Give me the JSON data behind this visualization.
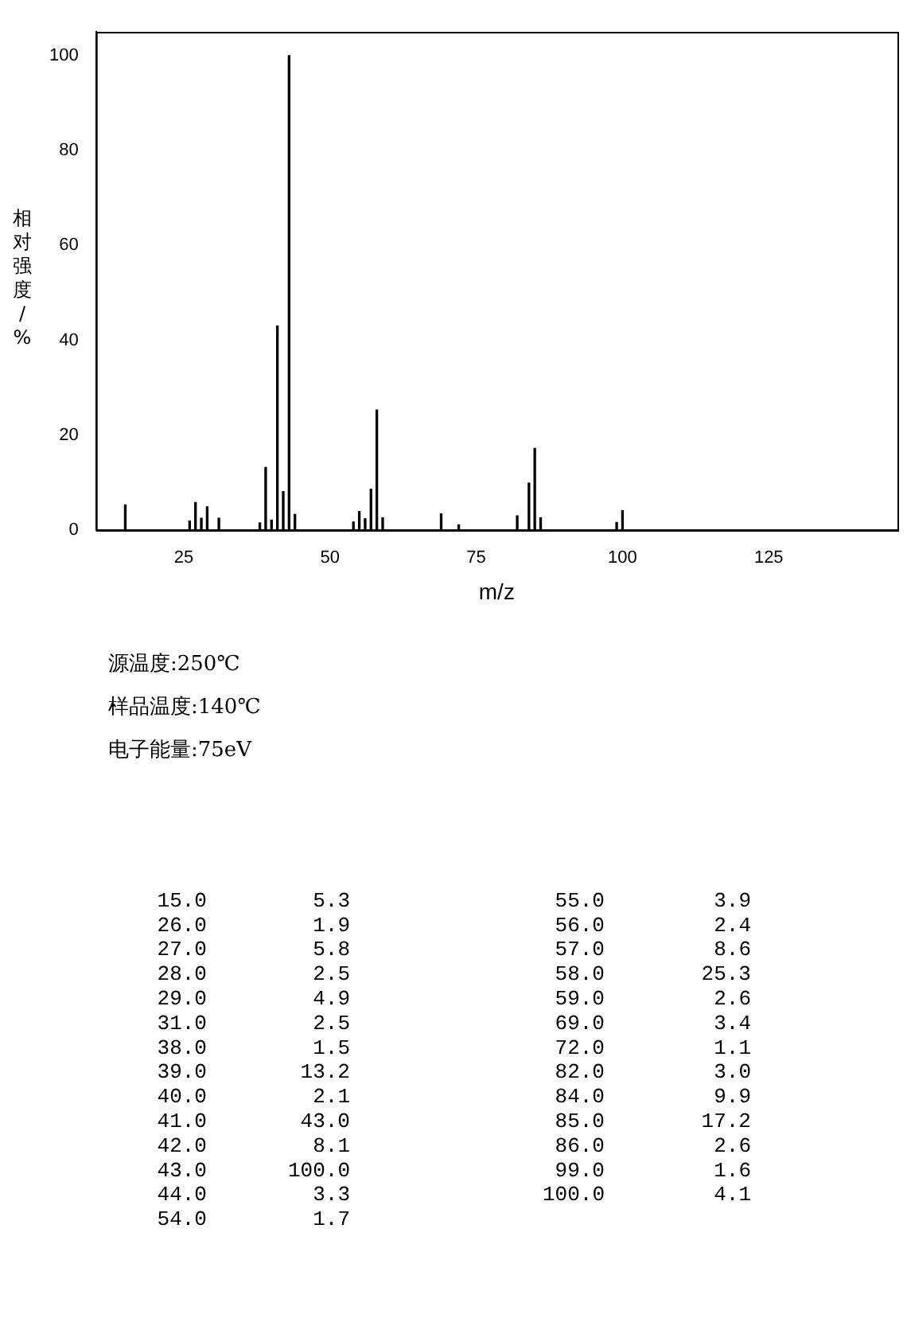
{
  "chart_data": {
    "type": "bar",
    "xlabel": "m/z",
    "ylabel": "相对强度/%",
    "x": [
      15,
      26,
      27,
      28,
      29,
      31,
      38,
      39,
      40,
      41,
      42,
      43,
      44,
      54,
      55,
      56,
      57,
      58,
      59,
      69,
      72,
      82,
      84,
      85,
      86,
      99,
      100
    ],
    "values": [
      5.3,
      1.9,
      5.8,
      2.5,
      4.9,
      2.5,
      1.5,
      13.2,
      2.1,
      43.0,
      8.1,
      100.0,
      3.3,
      1.7,
      3.9,
      2.4,
      8.6,
      25.3,
      2.6,
      3.4,
      1.1,
      3.0,
      9.9,
      17.2,
      2.6,
      1.6,
      4.1
    ],
    "color": "#000000",
    "xlim": [
      10,
      147
    ],
    "xticks": [
      25,
      50,
      75,
      100,
      125
    ],
    "ylim": [
      0,
      105
    ],
    "yticks": [
      0,
      20,
      40,
      60,
      80,
      100
    ],
    "grid": false,
    "legend": false,
    "annotations": [
      "源温度:250℃",
      "样品温度:140℃",
      "电子能量:75eV",
      "15.0",
      "5.3",
      "26.0",
      "1.9",
      "27.0",
      "5.8",
      "28.0",
      "2.5",
      "29.0",
      "4.9",
      "31.0",
      "2.5",
      "38.0",
      "1.5",
      "39.0",
      "13.2",
      "40.0",
      "2.1",
      "41.0",
      "43.0",
      "42.0",
      "8.1",
      "43.0",
      "100.0",
      "44.0",
      "3.3",
      "54.0",
      "1.7",
      "55.0",
      "3.9",
      "56.0",
      "2.4",
      "57.0",
      "8.6",
      "58.0",
      "25.3",
      "59.0",
      "2.6",
      "69.0",
      "3.4",
      "72.0",
      "1.1",
      "82.0",
      "3.0",
      "84.0",
      "9.9",
      "85.0",
      "17.2",
      "86.0",
      "2.6",
      "99.0",
      "1.6",
      "100.0",
      "4.1"
    ]
  }
}
